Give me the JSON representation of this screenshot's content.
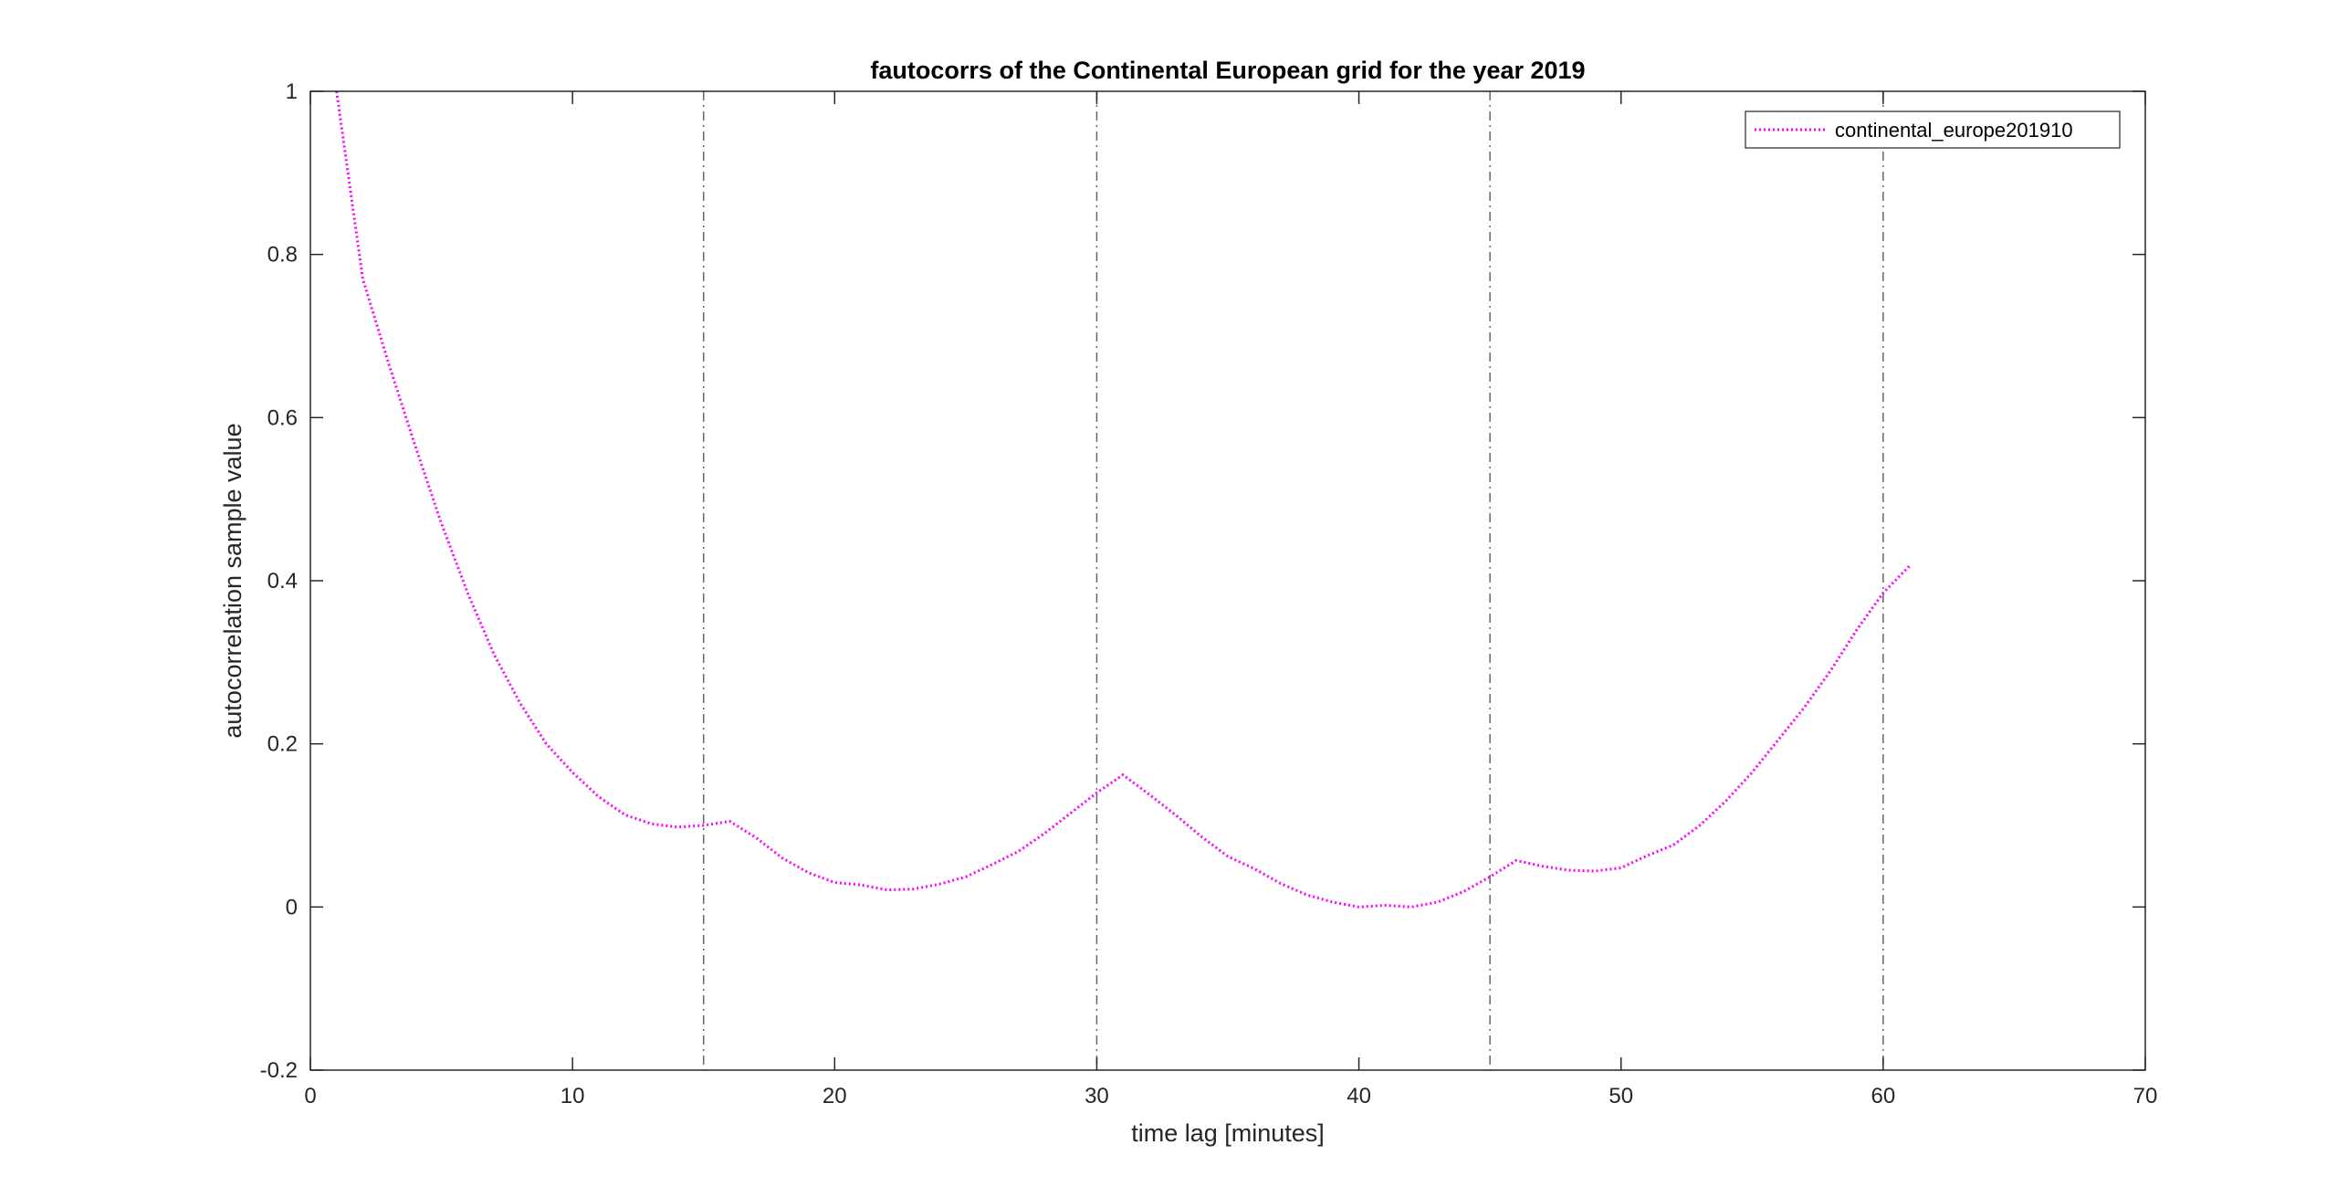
{
  "chart_data": {
    "type": "line",
    "title": "fautocorrs of the Continental European grid for the year 2019",
    "xlabel": "time lag [minutes]",
    "ylabel": "autocorrelation sample value",
    "xlim": [
      0,
      70
    ],
    "ylim": [
      -0.2,
      1
    ],
    "xticks": [
      0,
      10,
      20,
      30,
      40,
      50,
      60,
      70
    ],
    "yticks": [
      -0.2,
      0,
      0.2,
      0.4,
      0.6,
      0.8,
      1
    ],
    "xtick_labels": [
      "0",
      "10",
      "20",
      "30",
      "40",
      "50",
      "60",
      "70"
    ],
    "ytick_labels": [
      "-0.2",
      "0",
      "0.2",
      "0.4",
      "0.6",
      "0.8",
      "1"
    ],
    "grid": false,
    "box": true,
    "legend_position": "top-right",
    "vertical_reference_lines": [
      15,
      30,
      45,
      60
    ],
    "reference_line_color": "#666666",
    "series": [
      {
        "name": "continental_europe201910",
        "color": "#ff00ff",
        "line_style": "dotted",
        "x": [
          1,
          2,
          3,
          4,
          5,
          6,
          7,
          8,
          9,
          10,
          11,
          12,
          13,
          14,
          15,
          16,
          17,
          18,
          19,
          20,
          21,
          22,
          23,
          24,
          25,
          26,
          27,
          28,
          29,
          30,
          31,
          32,
          33,
          34,
          35,
          36,
          37,
          38,
          39,
          40,
          41,
          42,
          43,
          44,
          45,
          46,
          47,
          48,
          49,
          50,
          51,
          52,
          53,
          54,
          55,
          56,
          57,
          58,
          59,
          60,
          61
        ],
        "y": [
          1.0,
          0.77,
          0.665,
          0.565,
          0.47,
          0.385,
          0.31,
          0.25,
          0.2,
          0.165,
          0.135,
          0.113,
          0.102,
          0.098,
          0.1,
          0.105,
          0.085,
          0.06,
          0.042,
          0.03,
          0.027,
          0.021,
          0.022,
          0.028,
          0.037,
          0.052,
          0.068,
          0.09,
          0.115,
          0.14,
          0.162,
          0.138,
          0.113,
          0.086,
          0.062,
          0.047,
          0.029,
          0.015,
          0.006,
          0.0,
          0.002,
          0.0,
          0.006,
          0.019,
          0.037,
          0.057,
          0.05,
          0.045,
          0.044,
          0.048,
          0.063,
          0.076,
          0.1,
          0.13,
          0.165,
          0.205,
          0.245,
          0.29,
          0.34,
          0.385,
          0.418
        ]
      }
    ]
  }
}
